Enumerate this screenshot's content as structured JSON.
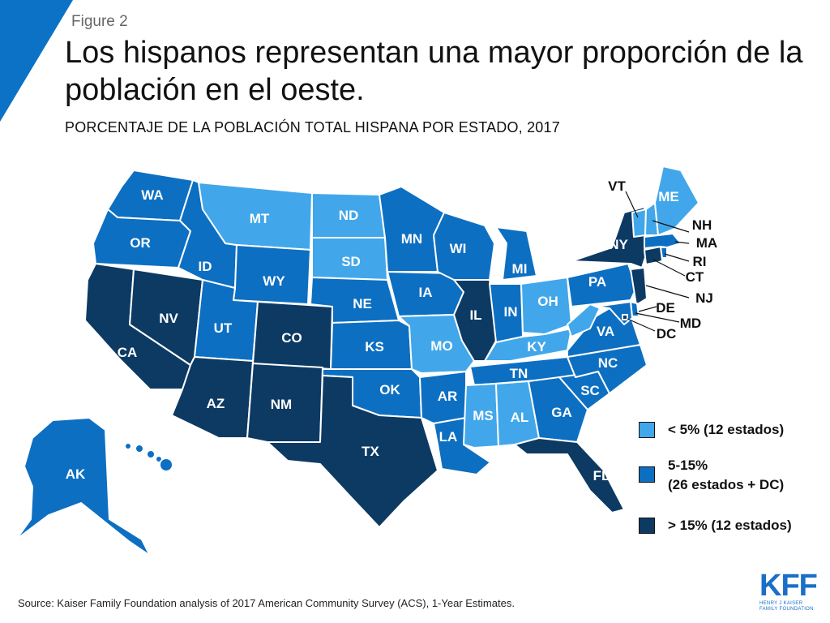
{
  "header": {
    "figure_label": "Figure 2",
    "title": "Los hispanos representan una mayor proporción de la población en el oeste.",
    "subtitle": "PORCENTAJE DE LA POBLACIÓN TOTAL HISPANA POR ESTADO, 2017"
  },
  "colors": {
    "low": "#41a7ea",
    "mid": "#0d6fc2",
    "high": "#0d3a63",
    "accent": "#0b72c6",
    "border": "#ffffff"
  },
  "legend": {
    "low": "< 5% (12 estados)",
    "mid_line1": "5-15%",
    "mid_line2": "(26 estados + DC)",
    "high": "> 15% (12 estados)"
  },
  "map": {
    "state_labels": {
      "WA": "WA",
      "OR": "OR",
      "CA": "CA",
      "NV": "NV",
      "ID": "ID",
      "MT": "MT",
      "WY": "WY",
      "UT": "UT",
      "AZ": "AZ",
      "CO": "CO",
      "NM": "NM",
      "ND": "ND",
      "SD": "SD",
      "NE": "NE",
      "KS": "KS",
      "OK": "OK",
      "TX": "TX",
      "MN": "MN",
      "IA": "IA",
      "MO": "MO",
      "AR": "AR",
      "LA": "LA",
      "WI": "WI",
      "IL": "IL",
      "MI": "MI",
      "IN": "IN",
      "OH": "OH",
      "KY": "KY",
      "TN": "TN",
      "MS": "MS",
      "AL": "AL",
      "GA": "GA",
      "FL": "FL",
      "SC": "SC",
      "NC": "NC",
      "VA": "VA",
      "PA": "PA",
      "NY": "NY",
      "ME": "ME",
      "VT": "VT",
      "NH": "NH",
      "MA": "MA",
      "RI": "RI",
      "CT": "CT",
      "NJ": "NJ",
      "DE": "DE",
      "MD": "MD",
      "DC": "DC",
      "AK": "AK"
    }
  },
  "footer": {
    "source": "Source: Kaiser Family Foundation analysis of 2017 American Community Survey (ACS), 1-Year Estimates.",
    "logo_mark": "KFF",
    "logo_line1": "HENRY J KAISER",
    "logo_line2": "FAMILY FOUNDATION"
  }
}
